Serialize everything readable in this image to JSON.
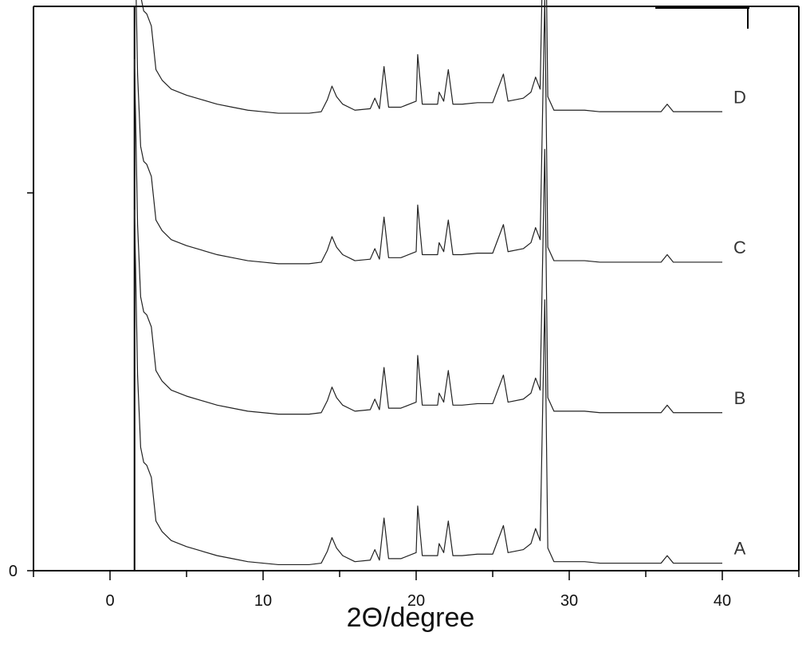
{
  "chart_data": {
    "type": "line",
    "title": "",
    "xlabel": "2Θ/degree",
    "ylabel": "",
    "xlim": [
      -5,
      45
    ],
    "ylim": [
      0,
      5
    ],
    "x_ticks": [
      0,
      10,
      20,
      30,
      40
    ],
    "y_ticks": [
      0
    ],
    "offset_step": 1.0,
    "grid": false,
    "legend": "none",
    "series": [
      {
        "name": "A",
        "offset": 0.0,
        "baseline": 0.0,
        "points": [
          [
            1.6,
            2.4
          ],
          [
            1.8,
            1.3
          ],
          [
            2.0,
            0.82
          ],
          [
            2.2,
            0.72
          ],
          [
            2.4,
            0.7
          ],
          [
            2.7,
            0.62
          ],
          [
            3.0,
            0.33
          ],
          [
            3.4,
            0.26
          ],
          [
            4.0,
            0.2
          ],
          [
            5.0,
            0.16
          ],
          [
            6.0,
            0.13
          ],
          [
            7.0,
            0.1
          ],
          [
            8.0,
            0.08
          ],
          [
            9.0,
            0.06
          ],
          [
            10.0,
            0.05
          ],
          [
            11.0,
            0.04
          ],
          [
            12.0,
            0.04
          ],
          [
            13.0,
            0.04
          ],
          [
            13.8,
            0.05
          ],
          [
            14.2,
            0.13
          ],
          [
            14.5,
            0.22
          ],
          [
            14.8,
            0.15
          ],
          [
            15.2,
            0.1
          ],
          [
            16.0,
            0.06
          ],
          [
            17.0,
            0.07
          ],
          [
            17.3,
            0.14
          ],
          [
            17.6,
            0.07
          ],
          [
            17.9,
            0.35
          ],
          [
            18.2,
            0.08
          ],
          [
            19.0,
            0.08
          ],
          [
            20.0,
            0.12
          ],
          [
            20.1,
            0.43
          ],
          [
            20.4,
            0.1
          ],
          [
            21.4,
            0.1
          ],
          [
            21.5,
            0.18
          ],
          [
            21.8,
            0.12
          ],
          [
            22.1,
            0.33
          ],
          [
            22.4,
            0.1
          ],
          [
            23.0,
            0.1
          ],
          [
            24.0,
            0.11
          ],
          [
            25.0,
            0.11
          ],
          [
            25.7,
            0.3
          ],
          [
            26.0,
            0.12
          ],
          [
            27.0,
            0.14
          ],
          [
            27.5,
            0.18
          ],
          [
            27.8,
            0.28
          ],
          [
            28.1,
            0.2
          ],
          [
            28.4,
            1.8
          ],
          [
            28.6,
            0.15
          ],
          [
            29.0,
            0.06
          ],
          [
            30.0,
            0.06
          ],
          [
            31.0,
            0.06
          ],
          [
            32.0,
            0.05
          ],
          [
            33.0,
            0.05
          ],
          [
            34.0,
            0.05
          ],
          [
            35.0,
            0.05
          ],
          [
            36.0,
            0.05
          ],
          [
            36.4,
            0.1
          ],
          [
            36.8,
            0.05
          ],
          [
            37.5,
            0.05
          ],
          [
            38.5,
            0.05
          ],
          [
            39.5,
            0.05
          ],
          [
            40.0,
            0.05
          ]
        ]
      },
      {
        "name": "B",
        "offset": 1.0,
        "baseline": 0.0,
        "points": [
          [
            1.6,
            2.4
          ],
          [
            1.8,
            1.3
          ],
          [
            2.0,
            0.82
          ],
          [
            2.2,
            0.72
          ],
          [
            2.4,
            0.7
          ],
          [
            2.7,
            0.62
          ],
          [
            3.0,
            0.33
          ],
          [
            3.4,
            0.26
          ],
          [
            4.0,
            0.2
          ],
          [
            5.0,
            0.16
          ],
          [
            6.0,
            0.13
          ],
          [
            7.0,
            0.1
          ],
          [
            8.0,
            0.08
          ],
          [
            9.0,
            0.06
          ],
          [
            10.0,
            0.05
          ],
          [
            11.0,
            0.04
          ],
          [
            12.0,
            0.04
          ],
          [
            13.0,
            0.04
          ],
          [
            13.8,
            0.05
          ],
          [
            14.2,
            0.13
          ],
          [
            14.5,
            0.22
          ],
          [
            14.8,
            0.15
          ],
          [
            15.2,
            0.1
          ],
          [
            16.0,
            0.06
          ],
          [
            17.0,
            0.07
          ],
          [
            17.3,
            0.14
          ],
          [
            17.6,
            0.07
          ],
          [
            17.9,
            0.35
          ],
          [
            18.2,
            0.08
          ],
          [
            19.0,
            0.08
          ],
          [
            20.0,
            0.12
          ],
          [
            20.1,
            0.43
          ],
          [
            20.4,
            0.1
          ],
          [
            21.4,
            0.1
          ],
          [
            21.5,
            0.18
          ],
          [
            21.8,
            0.12
          ],
          [
            22.1,
            0.33
          ],
          [
            22.4,
            0.1
          ],
          [
            23.0,
            0.1
          ],
          [
            24.0,
            0.11
          ],
          [
            25.0,
            0.11
          ],
          [
            25.7,
            0.3
          ],
          [
            26.0,
            0.12
          ],
          [
            27.0,
            0.14
          ],
          [
            27.5,
            0.18
          ],
          [
            27.8,
            0.28
          ],
          [
            28.1,
            0.2
          ],
          [
            28.4,
            1.8
          ],
          [
            28.6,
            0.15
          ],
          [
            29.0,
            0.06
          ],
          [
            30.0,
            0.06
          ],
          [
            31.0,
            0.06
          ],
          [
            32.0,
            0.05
          ],
          [
            33.0,
            0.05
          ],
          [
            34.0,
            0.05
          ],
          [
            35.0,
            0.05
          ],
          [
            36.0,
            0.05
          ],
          [
            36.4,
            0.1
          ],
          [
            36.8,
            0.05
          ],
          [
            37.5,
            0.05
          ],
          [
            38.5,
            0.05
          ],
          [
            39.5,
            0.05
          ],
          [
            40.0,
            0.05
          ]
        ]
      },
      {
        "name": "C",
        "offset": 2.0,
        "baseline": 0.0,
        "points": [
          [
            1.6,
            2.4
          ],
          [
            1.8,
            1.3
          ],
          [
            2.0,
            0.82
          ],
          [
            2.2,
            0.72
          ],
          [
            2.4,
            0.7
          ],
          [
            2.7,
            0.62
          ],
          [
            3.0,
            0.33
          ],
          [
            3.4,
            0.26
          ],
          [
            4.0,
            0.2
          ],
          [
            5.0,
            0.16
          ],
          [
            6.0,
            0.13
          ],
          [
            7.0,
            0.1
          ],
          [
            8.0,
            0.08
          ],
          [
            9.0,
            0.06
          ],
          [
            10.0,
            0.05
          ],
          [
            11.0,
            0.04
          ],
          [
            12.0,
            0.04
          ],
          [
            13.0,
            0.04
          ],
          [
            13.8,
            0.05
          ],
          [
            14.2,
            0.13
          ],
          [
            14.5,
            0.22
          ],
          [
            14.8,
            0.15
          ],
          [
            15.2,
            0.1
          ],
          [
            16.0,
            0.06
          ],
          [
            17.0,
            0.07
          ],
          [
            17.3,
            0.14
          ],
          [
            17.6,
            0.07
          ],
          [
            17.9,
            0.35
          ],
          [
            18.2,
            0.08
          ],
          [
            19.0,
            0.08
          ],
          [
            20.0,
            0.12
          ],
          [
            20.1,
            0.43
          ],
          [
            20.4,
            0.1
          ],
          [
            21.4,
            0.1
          ],
          [
            21.5,
            0.18
          ],
          [
            21.8,
            0.12
          ],
          [
            22.1,
            0.33
          ],
          [
            22.4,
            0.1
          ],
          [
            23.0,
            0.1
          ],
          [
            24.0,
            0.11
          ],
          [
            25.0,
            0.11
          ],
          [
            25.7,
            0.3
          ],
          [
            26.0,
            0.12
          ],
          [
            27.0,
            0.14
          ],
          [
            27.5,
            0.18
          ],
          [
            27.8,
            0.28
          ],
          [
            28.1,
            0.2
          ],
          [
            28.4,
            1.8
          ],
          [
            28.6,
            0.15
          ],
          [
            29.0,
            0.06
          ],
          [
            30.0,
            0.06
          ],
          [
            31.0,
            0.06
          ],
          [
            32.0,
            0.05
          ],
          [
            33.0,
            0.05
          ],
          [
            34.0,
            0.05
          ],
          [
            35.0,
            0.05
          ],
          [
            36.0,
            0.05
          ],
          [
            36.4,
            0.1
          ],
          [
            36.8,
            0.05
          ],
          [
            37.5,
            0.05
          ],
          [
            38.5,
            0.05
          ],
          [
            39.5,
            0.05
          ],
          [
            40.0,
            0.05
          ]
        ]
      },
      {
        "name": "D",
        "offset": 3.0,
        "baseline": 0.0,
        "points": [
          [
            1.6,
            2.4
          ],
          [
            1.8,
            1.3
          ],
          [
            2.0,
            0.82
          ],
          [
            2.2,
            0.72
          ],
          [
            2.4,
            0.7
          ],
          [
            2.7,
            0.62
          ],
          [
            3.0,
            0.33
          ],
          [
            3.4,
            0.26
          ],
          [
            4.0,
            0.2
          ],
          [
            5.0,
            0.16
          ],
          [
            6.0,
            0.13
          ],
          [
            7.0,
            0.1
          ],
          [
            8.0,
            0.08
          ],
          [
            9.0,
            0.06
          ],
          [
            10.0,
            0.05
          ],
          [
            11.0,
            0.04
          ],
          [
            12.0,
            0.04
          ],
          [
            13.0,
            0.04
          ],
          [
            13.8,
            0.05
          ],
          [
            14.2,
            0.13
          ],
          [
            14.5,
            0.22
          ],
          [
            14.8,
            0.15
          ],
          [
            15.2,
            0.1
          ],
          [
            16.0,
            0.06
          ],
          [
            17.0,
            0.07
          ],
          [
            17.3,
            0.14
          ],
          [
            17.6,
            0.07
          ],
          [
            17.9,
            0.35
          ],
          [
            18.2,
            0.08
          ],
          [
            19.0,
            0.08
          ],
          [
            20.0,
            0.12
          ],
          [
            20.1,
            0.43
          ],
          [
            20.4,
            0.1
          ],
          [
            21.4,
            0.1
          ],
          [
            21.5,
            0.18
          ],
          [
            21.8,
            0.12
          ],
          [
            22.1,
            0.33
          ],
          [
            22.4,
            0.1
          ],
          [
            23.0,
            0.1
          ],
          [
            24.0,
            0.11
          ],
          [
            25.0,
            0.11
          ],
          [
            25.7,
            0.3
          ],
          [
            26.0,
            0.12
          ],
          [
            27.0,
            0.14
          ],
          [
            27.5,
            0.18
          ],
          [
            27.8,
            0.28
          ],
          [
            28.1,
            0.2
          ],
          [
            28.4,
            1.8
          ],
          [
            28.6,
            0.15
          ],
          [
            29.0,
            0.06
          ],
          [
            30.0,
            0.06
          ],
          [
            31.0,
            0.06
          ],
          [
            32.0,
            0.05
          ],
          [
            33.0,
            0.05
          ],
          [
            34.0,
            0.05
          ],
          [
            35.0,
            0.05
          ],
          [
            36.0,
            0.05
          ],
          [
            36.4,
            0.1
          ],
          [
            36.8,
            0.05
          ],
          [
            37.5,
            0.05
          ],
          [
            38.5,
            0.05
          ],
          [
            39.5,
            0.05
          ],
          [
            40.0,
            0.05
          ]
        ]
      }
    ],
    "colors": {
      "axis": "#000000",
      "line": "#222222",
      "label": "#333333"
    }
  }
}
